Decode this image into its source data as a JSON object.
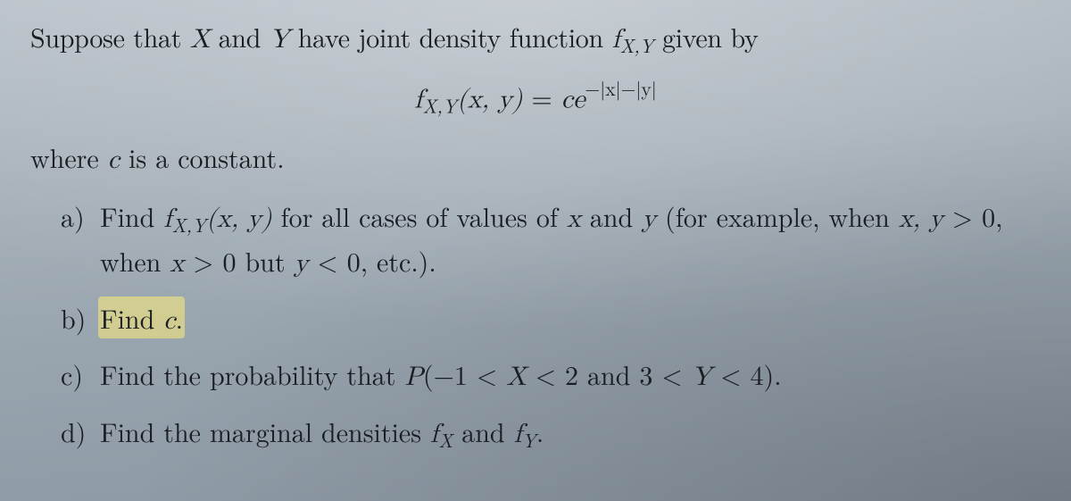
{
  "colors": {
    "background_gradient": [
      "#b8c0c8",
      "#a8b2ba",
      "#98a4ae",
      "#8a96a2"
    ],
    "text": "#1a1d22",
    "highlight": "#ffec78"
  },
  "typography": {
    "body_font": "Computer Modern / Latin Modern (serif)",
    "body_size_pt": 22,
    "line_height": 1.55
  },
  "intro": {
    "pre": "Suppose that ",
    "X": "X",
    "and1": " and ",
    "Y": "Y",
    "mid": " have joint density function ",
    "fxy": "f",
    "fxy_sub": "X,Y",
    "post": " given by"
  },
  "formula": {
    "f": "f",
    "f_sub": "X,Y",
    "args": "(x, y)",
    "eq": " = ",
    "c": "c",
    "e": "e",
    "exp": "−|x|−|y|"
  },
  "where": {
    "pre": "where ",
    "c": "c",
    "post": " is a constant."
  },
  "parts": {
    "a": {
      "label": "a)",
      "pre": "Find ",
      "f": "f",
      "f_sub": "X,Y",
      "args": "(x, y)",
      "mid1": " for all cases of values of ",
      "x": "x",
      "and": " and ",
      "y": "y",
      "mid2": " (for example, when ",
      "cond1_a": "x, y",
      "cond1_b": " > 0",
      "mid3": ", when ",
      "cond2_a": "x",
      "cond2_b": " > 0",
      "mid4": " but ",
      "cond3_a": "y",
      "cond3_b": " < 0",
      "tail": ", etc.)."
    },
    "b": {
      "label": "b)",
      "pre": "Find ",
      "c": "c",
      "post": "."
    },
    "c": {
      "label": "c)",
      "pre": "Find the probability that ",
      "P": "P",
      "open": "(−1 < ",
      "X": "X",
      "mid1": " < 2 and 3 < ",
      "Y": "Y",
      "close": " < 4)."
    },
    "d": {
      "label": "d)",
      "pre": "Find the marginal densities ",
      "fX": "f",
      "fX_sub": "X",
      "and": " and ",
      "fY": "f",
      "fY_sub": "Y",
      "post": "."
    }
  }
}
